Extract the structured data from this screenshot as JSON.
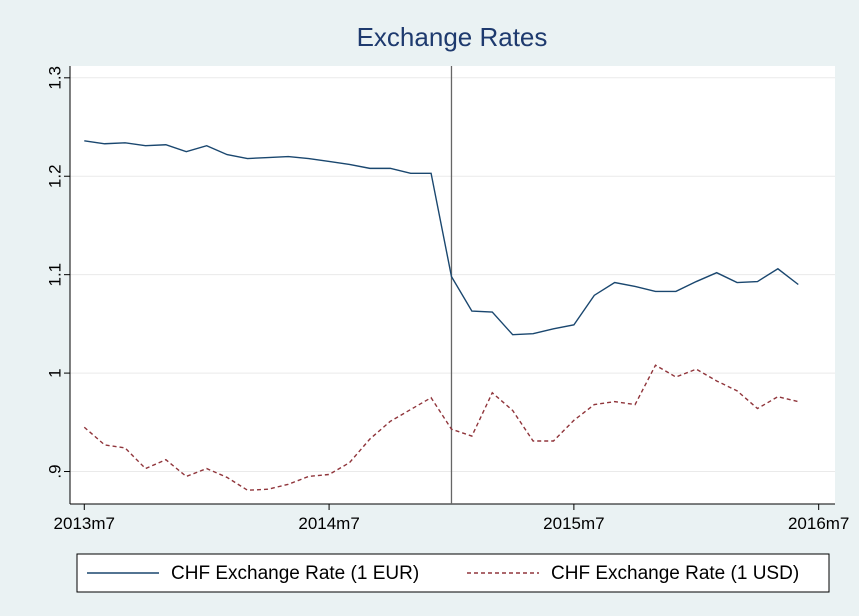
{
  "chart_data": {
    "type": "line",
    "title": "Exchange Rates",
    "x": [
      642,
      643,
      644,
      645,
      646,
      647,
      648,
      649,
      650,
      651,
      652,
      653,
      654,
      655,
      656,
      657,
      658,
      659,
      660,
      661,
      662,
      663,
      664,
      665,
      666,
      667,
      668,
      669,
      670,
      671,
      672,
      673,
      674,
      675,
      676,
      677
    ],
    "series": [
      {
        "name": "CHF Exchange Rate (1 EUR)",
        "color": "#1a476f",
        "dash": false,
        "values": [
          1.236,
          1.233,
          1.234,
          1.231,
          1.232,
          1.225,
          1.231,
          1.222,
          1.218,
          1.219,
          1.22,
          1.218,
          1.215,
          1.212,
          1.208,
          1.208,
          1.203,
          1.203,
          1.098,
          1.063,
          1.062,
          1.039,
          1.04,
          1.045,
          1.049,
          1.079,
          1.092,
          1.088,
          1.083,
          1.083,
          1.093,
          1.102,
          1.092,
          1.093,
          1.106,
          1.09
        ]
      },
      {
        "name": "CHF Exchange Rate (1 USD)",
        "color": "#90353b",
        "dash": true,
        "values": [
          0.945,
          0.927,
          0.924,
          0.903,
          0.912,
          0.895,
          0.903,
          0.894,
          0.881,
          0.882,
          0.887,
          0.895,
          0.897,
          0.909,
          0.933,
          0.951,
          0.963,
          0.975,
          0.943,
          0.936,
          0.98,
          0.962,
          0.931,
          0.931,
          0.952,
          0.968,
          0.971,
          0.968,
          1.008,
          0.996,
          1.004,
          0.992,
          0.982,
          0.964,
          0.976,
          0.971
        ]
      }
    ],
    "xlim": [
      641.3,
      678.8
    ],
    "xticks": [
      {
        "value": 642,
        "label": "2013m7"
      },
      {
        "value": 654,
        "label": "2014m7"
      },
      {
        "value": 666,
        "label": "2015m7"
      },
      {
        "value": 678,
        "label": "2016m7"
      }
    ],
    "ylim": [
      0.867,
      1.312
    ],
    "yticks": [
      {
        "value": 0.9,
        "label": ".9"
      },
      1,
      1.1,
      1.2,
      1.3
    ],
    "xline": 660,
    "grid": true,
    "legend": "bottom"
  }
}
